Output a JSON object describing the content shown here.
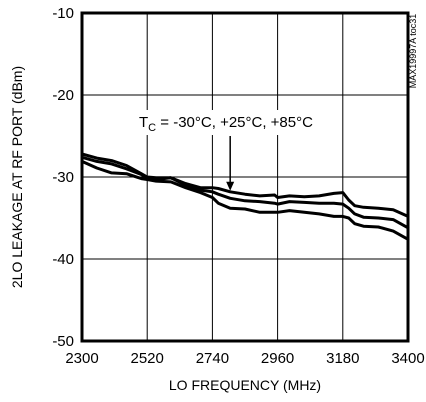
{
  "chart_data": {
    "type": "line",
    "xlabel": "LO FREQUENCY (MHz)",
    "ylabel": "2LO LEAKAGE AT RF PORT (dBm)",
    "x_ticks": [
      2300,
      2520,
      2740,
      2960,
      3180,
      3400
    ],
    "y_ticks": [
      -10,
      -20,
      -30,
      -40,
      -50
    ],
    "xlim": [
      2300,
      3400
    ],
    "ylim": [
      -50,
      -10
    ],
    "grid": true,
    "annotation": {
      "prefix": "T",
      "subscript": "C",
      "text": " = -30°C, +25°C, +85°C",
      "arrow_target": {
        "x": 2800,
        "y": -31.8
      }
    },
    "watermark": "MAX19997A toc31",
    "series": [
      {
        "x": [
          2300,
          2350,
          2400,
          2450,
          2500,
          2520,
          2550,
          2600,
          2650,
          2700,
          2740,
          2760,
          2800,
          2850,
          2900,
          2950,
          2960,
          3000,
          3050,
          3100,
          3150,
          3180,
          3200,
          3220,
          3250,
          3300,
          3350,
          3400
        ],
        "y": [
          -27.2,
          -27.7,
          -28.0,
          -28.6,
          -29.6,
          -30.0,
          -30.1,
          -30.1,
          -30.8,
          -31.3,
          -31.3,
          -31.4,
          -31.8,
          -32.1,
          -32.3,
          -32.2,
          -32.5,
          -32.3,
          -32.4,
          -32.3,
          -32.0,
          -31.9,
          -32.8,
          -33.5,
          -33.7,
          -33.8,
          -34.0,
          -34.8
        ]
      },
      {
        "x": [
          2300,
          2350,
          2400,
          2450,
          2500,
          2520,
          2550,
          2600,
          2650,
          2700,
          2740,
          2760,
          2800,
          2850,
          2900,
          2950,
          2960,
          3000,
          3050,
          3100,
          3150,
          3180,
          3200,
          3220,
          3250,
          3300,
          3350,
          3400
        ],
        "y": [
          -27.6,
          -28.1,
          -28.4,
          -29.0,
          -29.7,
          -30.1,
          -30.3,
          -30.1,
          -31.0,
          -31.6,
          -31.8,
          -32.1,
          -32.6,
          -32.9,
          -33.0,
          -33.2,
          -33.3,
          -33.0,
          -33.1,
          -33.2,
          -33.2,
          -33.3,
          -33.8,
          -34.5,
          -34.9,
          -35.0,
          -35.2,
          -36.2
        ]
      },
      {
        "x": [
          2300,
          2350,
          2400,
          2450,
          2500,
          2520,
          2550,
          2600,
          2650,
          2700,
          2740,
          2760,
          2800,
          2850,
          2900,
          2950,
          2960,
          3000,
          3050,
          3100,
          3150,
          3180,
          3200,
          3220,
          3250,
          3300,
          3350,
          3400
        ],
        "y": [
          -28.1,
          -28.9,
          -29.5,
          -29.6,
          -30.2,
          -30.3,
          -30.5,
          -30.6,
          -31.3,
          -31.9,
          -32.5,
          -33.2,
          -33.8,
          -33.9,
          -34.3,
          -34.3,
          -34.3,
          -34.1,
          -34.3,
          -34.5,
          -34.8,
          -34.8,
          -35.0,
          -35.7,
          -36.0,
          -36.1,
          -36.6,
          -37.6
        ]
      }
    ]
  }
}
